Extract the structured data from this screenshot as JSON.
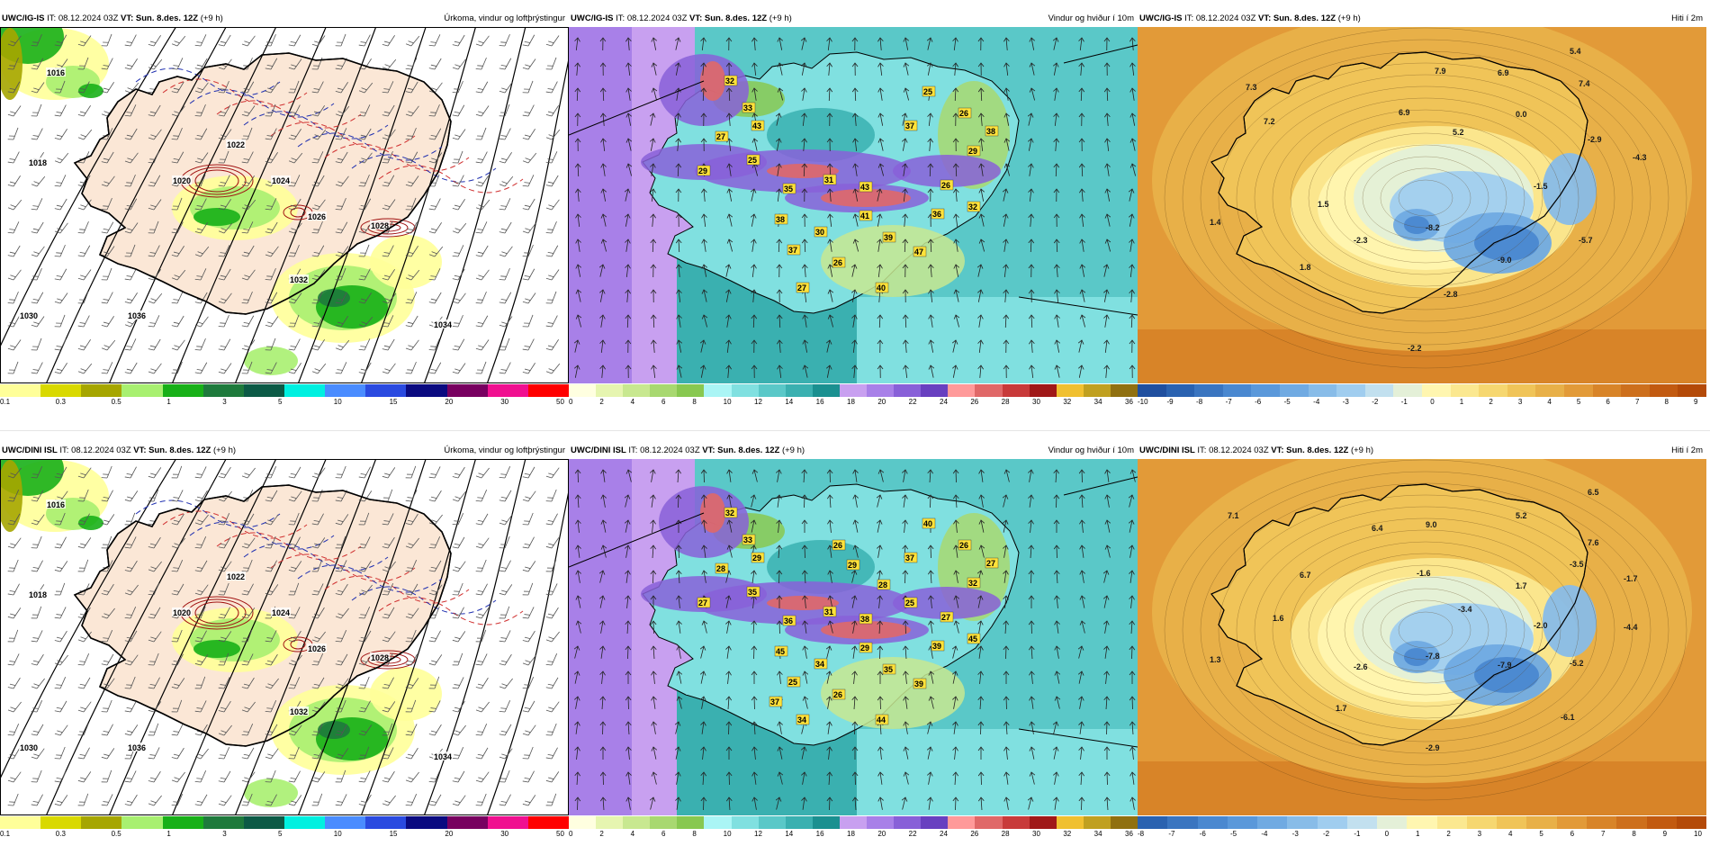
{
  "panels": [
    {
      "id": "p1",
      "model": "UWC/IG-IS",
      "it": "08.12.2024 03Z",
      "vt": "Sun. 8.des. 12Z",
      "lead": "(+9 h)",
      "product": "Úrkoma, vindur og loftþrýstingur",
      "type": "precip",
      "colors": [
        "#ffff99",
        "#d9d900",
        "#a6a600",
        "#a8f070",
        "#18b018",
        "#1e7a3c",
        "#0c5a46",
        "#00f0e0",
        "#4a8cff",
        "#2a4ae0",
        "#0a0a80",
        "#780060",
        "#f01090",
        "#ff0000"
      ],
      "ticks": [
        "0.1",
        "0.3",
        "0.5",
        "1",
        "3",
        "5",
        "10",
        "15",
        "20",
        "30",
        "50"
      ],
      "isobars": [
        "1016",
        "1018",
        "1020",
        "1022",
        "1024",
        "1026",
        "1028",
        "1030",
        "1032",
        "1034",
        "1036"
      ]
    },
    {
      "id": "p2",
      "model": "UWC/IG-IS",
      "it": "08.12.2024 03Z",
      "vt": "Sun. 8.des. 12Z",
      "lead": "(+9 h)",
      "product": "Vindur og hviður í 10m",
      "type": "wind",
      "colors": [
        "#ffffe0",
        "#e6f5b0",
        "#c8e890",
        "#a8d870",
        "#88c850",
        "#aaf5f5",
        "#80e0e0",
        "#5ac8c8",
        "#3ab0b0",
        "#1a9090",
        "#c8a0f0",
        "#a880e8",
        "#8860d8",
        "#6840c0",
        "#ff9a9a",
        "#e06868",
        "#c83a3a",
        "#a01818",
        "#f0c030",
        "#c0a020",
        "#907010"
      ],
      "ticks": [
        "0",
        "2",
        "4",
        "6",
        "8",
        "10",
        "12",
        "14",
        "16",
        "18",
        "20",
        "22",
        "24",
        "26",
        "28",
        "30",
        "32",
        "34",
        "36"
      ],
      "labels": [
        "32",
        "33",
        "43",
        "27",
        "29",
        "25",
        "35",
        "38",
        "37",
        "30",
        "31",
        "41",
        "43",
        "39",
        "47",
        "26",
        "40",
        "27",
        "36",
        "32",
        "38",
        "26",
        "25",
        "37",
        "29",
        "26"
      ]
    },
    {
      "id": "p3",
      "model": "UWC/IG-IS",
      "it": "08.12.2024 03Z",
      "vt": "Sun. 8.des. 12Z",
      "lead": "(+9 h)",
      "product": "Hiti í 2m",
      "type": "temp",
      "colors": [
        "#1f4f9f",
        "#2a62b0",
        "#3a75c0",
        "#4a88d0",
        "#5a98da",
        "#70aae2",
        "#88bce8",
        "#a0cdef",
        "#c2e0ef",
        "#e4f0d8",
        "#fff6b0",
        "#fbe890",
        "#f6d770",
        "#f0c458",
        "#e8b048",
        "#e29a38",
        "#d88428",
        "#cd6f1c",
        "#c25a10",
        "#b44a08"
      ],
      "ticks": [
        "-10",
        "-9",
        "-8",
        "-7",
        "-6",
        "-5",
        "-4",
        "-3",
        "-2",
        "-1",
        "0",
        "1",
        "2",
        "3",
        "4",
        "5",
        "6",
        "7",
        "8",
        "9"
      ],
      "labels": [
        "7.3",
        "7.9",
        "6.9",
        "5.4",
        "7.4",
        "7.2",
        "6.9",
        "5.2",
        "0.0",
        "-2.9",
        "-4.3",
        "1.5",
        "-1.5",
        "1.4",
        "-2.3",
        "-8.2",
        "-5.7",
        "1.8",
        "-9.0",
        "-2.8",
        "-2.2"
      ]
    },
    {
      "id": "p4",
      "model": "UWC/DINI ISL",
      "it": "08.12.2024 03Z",
      "vt": "Sun. 8.des. 12Z",
      "lead": "(+9 h)",
      "product": "Úrkoma, vindur og loftþrýstingur",
      "type": "precip",
      "colors": [
        "#ffff99",
        "#d9d900",
        "#a6a600",
        "#a8f070",
        "#18b018",
        "#1e7a3c",
        "#0c5a46",
        "#00f0e0",
        "#4a8cff",
        "#2a4ae0",
        "#0a0a80",
        "#780060",
        "#f01090",
        "#ff0000"
      ],
      "ticks": [
        "0.1",
        "0.3",
        "0.5",
        "1",
        "3",
        "5",
        "10",
        "15",
        "20",
        "30",
        "50"
      ],
      "isobars": [
        "1016",
        "1018",
        "1020",
        "1022",
        "1024",
        "1026",
        "1028",
        "1030",
        "1032",
        "1034",
        "1036"
      ]
    },
    {
      "id": "p5",
      "model": "UWC/DINI ISL",
      "it": "08.12.2024 03Z",
      "vt": "Sun. 8.des. 12Z",
      "lead": "(+9 h)",
      "product": "Vindur og hviður í 10m",
      "type": "wind",
      "colors": [
        "#ffffe0",
        "#e6f5b0",
        "#c8e890",
        "#a8d870",
        "#88c850",
        "#aaf5f5",
        "#80e0e0",
        "#5ac8c8",
        "#3ab0b0",
        "#1a9090",
        "#c8a0f0",
        "#a880e8",
        "#8860d8",
        "#6840c0",
        "#ff9a9a",
        "#e06868",
        "#c83a3a",
        "#a01818",
        "#f0c030",
        "#c0a020",
        "#907010"
      ],
      "ticks": [
        "0",
        "2",
        "4",
        "6",
        "8",
        "10",
        "12",
        "14",
        "16",
        "18",
        "20",
        "22",
        "24",
        "26",
        "28",
        "30",
        "32",
        "34",
        "36"
      ],
      "labels": [
        "32",
        "33",
        "29",
        "28",
        "27",
        "35",
        "36",
        "45",
        "25",
        "34",
        "31",
        "29",
        "38",
        "35",
        "39",
        "26",
        "44",
        "34",
        "39",
        "45",
        "27",
        "26",
        "40",
        "37",
        "32",
        "27",
        "29",
        "28",
        "37",
        "26",
        "25"
      ]
    },
    {
      "id": "p6",
      "model": "UWC/DINI ISL",
      "it": "08.12.2024 03Z",
      "vt": "Sun. 8.des. 12Z",
      "lead": "(+9 h)",
      "product": "Hiti í 2m",
      "type": "temp",
      "colors": [
        "#2a62b0",
        "#3a75c0",
        "#4a88d0",
        "#5a98da",
        "#70aae2",
        "#88bce8",
        "#a0cdef",
        "#c2e0ef",
        "#e4f0d8",
        "#fff6b0",
        "#fbe890",
        "#f6d770",
        "#f0c458",
        "#e8b048",
        "#e29a38",
        "#d88428",
        "#cd6f1c",
        "#c25a10",
        "#b44a08"
      ],
      "ticks": [
        "-8",
        "-7",
        "-6",
        "-5",
        "-4",
        "-3",
        "-2",
        "-1",
        "0",
        "1",
        "2",
        "3",
        "4",
        "5",
        "6",
        "7",
        "8",
        "9",
        "10"
      ],
      "labels": [
        "7.1",
        "6.4",
        "9.0",
        "5.2",
        "6.5",
        "7.6",
        "6.7",
        "-1.6",
        "-3.4",
        "1.7",
        "-3.5",
        "-1.7",
        "1.6",
        "-2.0",
        "-4.4",
        "1.3",
        "-2.6",
        "-7.8",
        "-7.9",
        "-5.2",
        "1.7",
        "-6.1",
        "-2.9"
      ]
    }
  ]
}
